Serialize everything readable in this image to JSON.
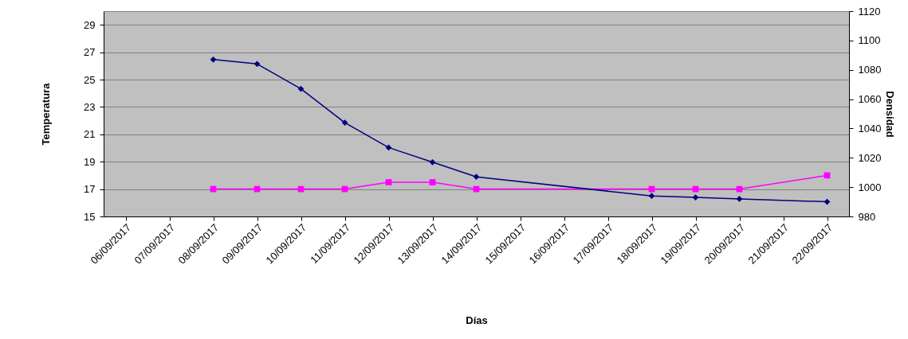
{
  "chart_data": {
    "type": "line",
    "xlabel": "Días",
    "ylabel": "Temperatura",
    "y2label": "Densidad",
    "categories": [
      "06/09/2017",
      "07/09/2017",
      "08/09/2017",
      "09/09/2017",
      "10/09/2017",
      "11/09/2017",
      "12/09/2017",
      "13/09/2017",
      "14/09/2017",
      "15/09/2017",
      "16/09/2017",
      "17/09/2017",
      "18/09/2017",
      "19/09/2017",
      "20/09/2017",
      "21/09/2017",
      "22/09/2017"
    ],
    "series": [
      {
        "color": "#ff00ff",
        "marker": "square",
        "values": [
          null,
          null,
          17,
          17,
          17,
          17,
          17.5,
          17.5,
          17,
          null,
          null,
          null,
          17,
          17,
          17,
          null,
          18
        ]
      },
      {
        "color": "#000080",
        "marker": "diamond",
        "axis": "y2",
        "values": [
          null,
          null,
          1087,
          1084,
          1067,
          1044,
          1027,
          1017,
          1007,
          null,
          null,
          null,
          994,
          993,
          992,
          null,
          990
        ]
      }
    ],
    "ylim": [
      15,
      30
    ],
    "yticks": [
      15,
      17,
      19,
      21,
      23,
      25,
      27,
      29
    ],
    "y2lim": [
      980,
      1120
    ],
    "y2ticks": [
      980,
      1000,
      1020,
      1040,
      1060,
      1080,
      1100,
      1120
    ],
    "grid": "y"
  }
}
